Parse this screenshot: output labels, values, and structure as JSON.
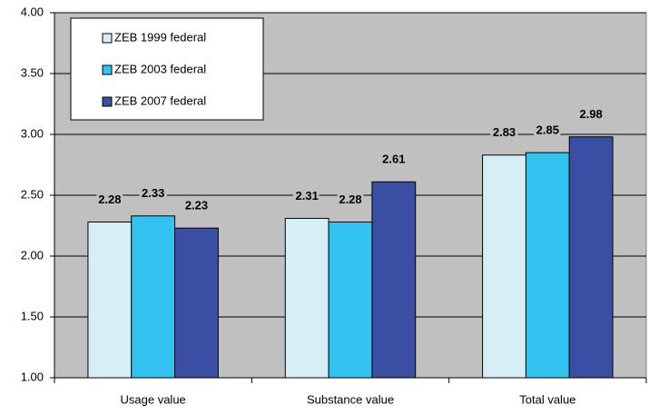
{
  "chart_data": {
    "type": "bar",
    "categories": [
      "Usage value",
      "Substance value",
      "Total value"
    ],
    "series": [
      {
        "name": "ZEB 1999 federal",
        "color": "#d6eef6",
        "values": [
          2.28,
          2.31,
          2.83
        ]
      },
      {
        "name": "ZEB 2003 federal",
        "color": "#33c3f0",
        "values": [
          2.33,
          2.28,
          2.85
        ]
      },
      {
        "name": "ZEB 2007 federal",
        "color": "#3a4fa3",
        "values": [
          2.23,
          2.61,
          2.98
        ]
      }
    ],
    "ylim": [
      1,
      4
    ],
    "yticks": [
      {
        "value": 1,
        "label": "1.00"
      },
      {
        "value": 1.5,
        "label": "1.50"
      },
      {
        "value": 2,
        "label": "2.00"
      },
      {
        "value": 2.5,
        "label": "2.50"
      },
      {
        "value": 3,
        "label": "3.00"
      },
      {
        "value": 3.5,
        "label": "3.50"
      },
      {
        "value": 4,
        "label": "4.00"
      }
    ],
    "grid": true,
    "legend": "upper left",
    "plot_background": "#c0c0c0"
  }
}
